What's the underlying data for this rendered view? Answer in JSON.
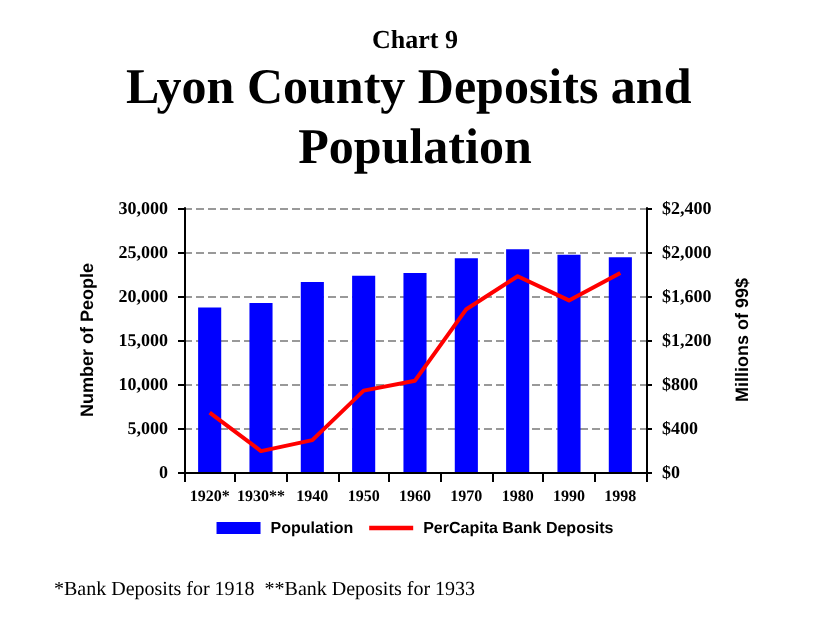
{
  "chart_data": {
    "type": "bar",
    "subtitle": "Chart 9",
    "title": "Lyon County Deposits and Population",
    "categories": [
      "1920*",
      "1930**",
      "1940",
      "1950",
      "1960",
      "1970",
      "1980",
      "1990",
      "1998"
    ],
    "series": [
      {
        "name": "Population",
        "color": "#0000ff",
        "values": [
          18700,
          19200,
          21600,
          22300,
          22600,
          24300,
          25300,
          24700,
          24400
        ]
      },
      {
        "name": "PerCapita Bank Deposits",
        "type": "line",
        "axis": "y2",
        "color": "#ff0000",
        "marker": "none",
        "line_style": "solid",
        "values": [
          540,
          190,
          290,
          740,
          830,
          1480,
          1780,
          1560,
          1810
        ]
      }
    ],
    "ylabel": "Number of People",
    "y2label": "Millions of 99$",
    "ylim": [
      0,
      30000
    ],
    "yticks": [
      {
        "value": 0,
        "label": "0"
      },
      {
        "value": 5000,
        "label": "5,000"
      },
      {
        "value": 10000,
        "label": "10,000"
      },
      {
        "value": 15000,
        "label": "15,000"
      },
      {
        "value": 20000,
        "label": "20,000"
      },
      {
        "value": 25000,
        "label": "25,000"
      },
      {
        "value": 30000,
        "label": "30,000"
      }
    ],
    "y2lim": [
      0,
      2400
    ],
    "y2ticks": [
      {
        "value": 0,
        "label": "$0"
      },
      {
        "value": 400,
        "label": "$400"
      },
      {
        "value": 800,
        "label": "$800"
      },
      {
        "value": 1200,
        "label": "$1,200"
      },
      {
        "value": 1600,
        "label": "$1,600"
      },
      {
        "value": 2000,
        "label": "$2,000"
      },
      {
        "value": 2400,
        "label": "$2,400"
      }
    ],
    "grid": "y",
    "legend": "bottom",
    "annotations": [
      "*Bank Deposits for 1918  **Bank Deposits for 1933"
    ]
  }
}
